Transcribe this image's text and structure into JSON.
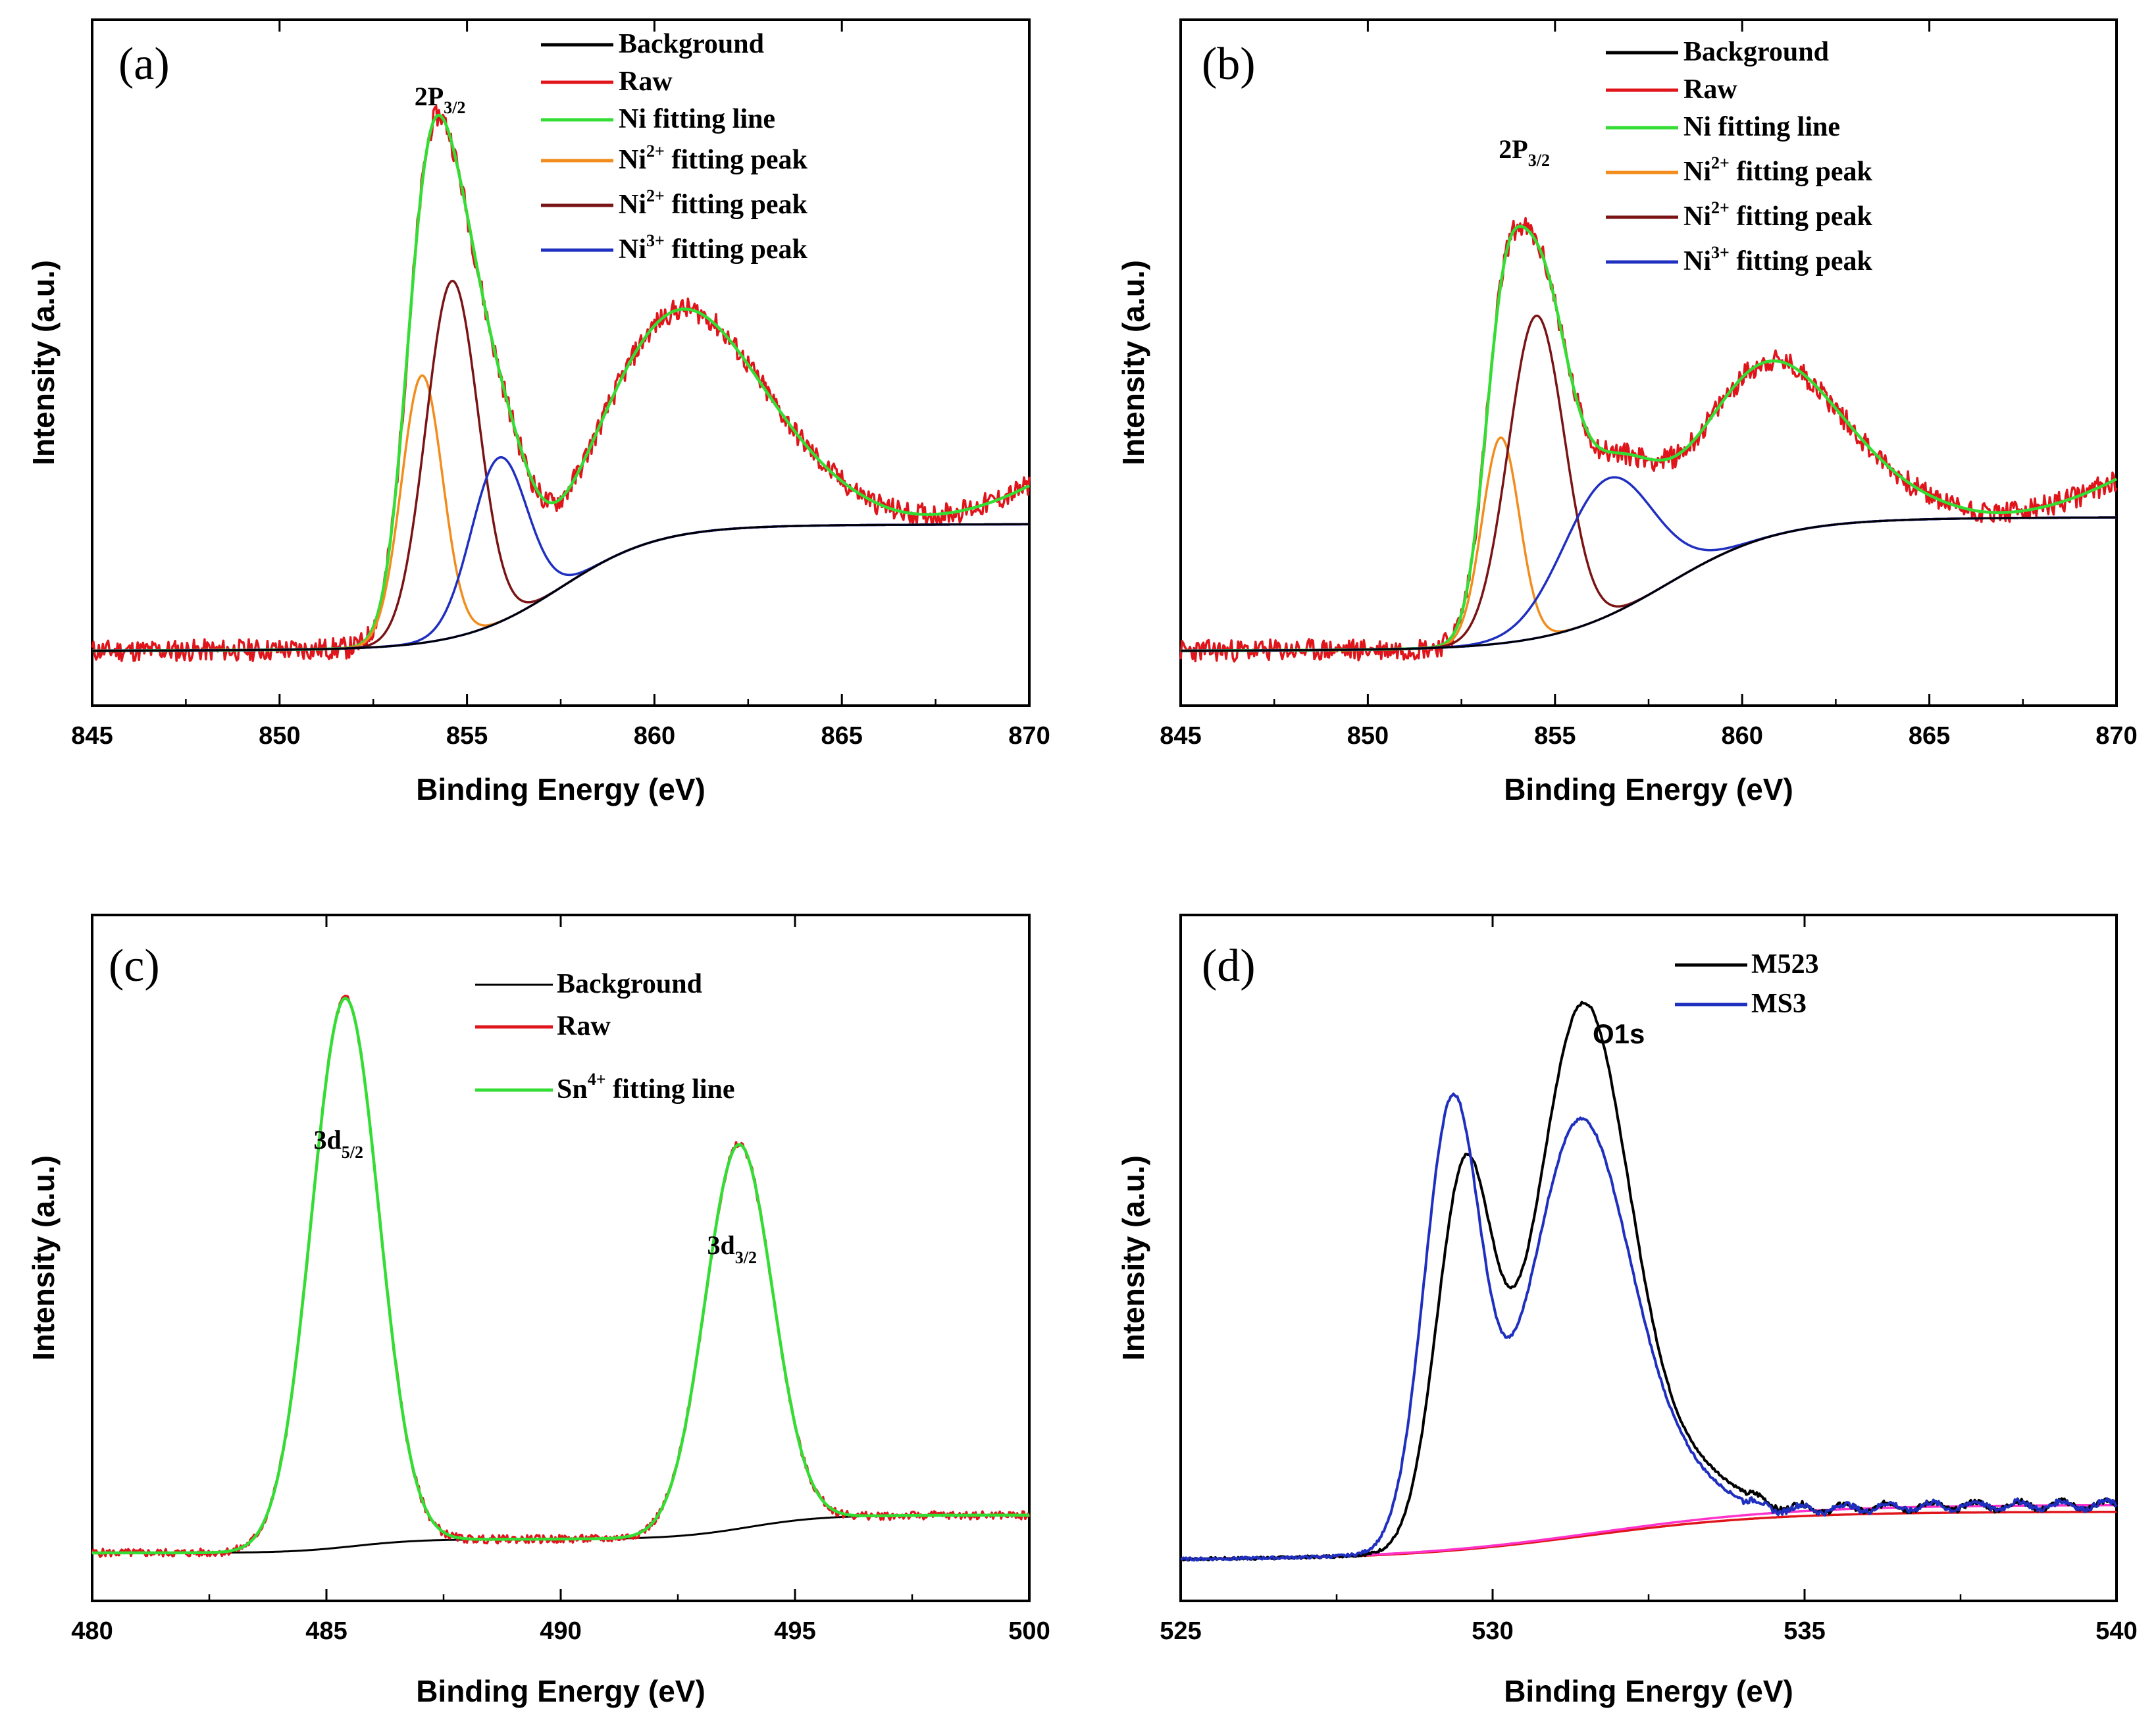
{
  "chart_data": [
    {
      "panel": "(a)",
      "type": "line",
      "xlabel": "Binding Energy (eV)",
      "ylabel": "Intensity (a.u.)",
      "xlim": [
        845,
        870
      ],
      "xticks": [
        845,
        850,
        855,
        860,
        865,
        870
      ],
      "ylim": [
        0,
        100
      ],
      "peak_annotation": {
        "base": "2P",
        "sub": "3/2",
        "x": 854.3,
        "y": 92
      },
      "legend": [
        {
          "label": "Background",
          "color": "#000000"
        },
        {
          "label": "Raw",
          "color": "#e0151b"
        },
        {
          "label": "Ni fitting line",
          "color": "#33dd33"
        },
        {
          "label": "Ni",
          "sup": "2+",
          "rest": " fitting peak",
          "color": "#f28c1c"
        },
        {
          "label": "Ni",
          "sup": "2+",
          "rest": " fitting peak",
          "color": "#7a1414"
        },
        {
          "label": "Ni",
          "sup": "3+",
          "rest": " fitting peak",
          "color": "#1f2fbf"
        }
      ],
      "background": {
        "start": 8,
        "end": 26,
        "center": 857.5,
        "width": 1.3
      },
      "peaks": [
        {
          "series": "Ni2+ peak 1",
          "center": 853.8,
          "height": 39,
          "sigma": 0.55,
          "color": "#f28c1c"
        },
        {
          "series": "Ni2+ peak 2",
          "center": 854.6,
          "height": 52,
          "sigma": 0.7,
          "color": "#7a1414"
        },
        {
          "series": "Ni3+ peak",
          "center": 855.85,
          "height": 24,
          "sigma": 0.75,
          "color": "#1f2fbf"
        },
        {
          "series": "satellite",
          "center": 860.3,
          "height": 27,
          "sigma": 2.0,
          "color": "none"
        },
        {
          "series": "satellite 2",
          "center": 862.5,
          "height": 9,
          "sigma": 2.2,
          "color": "none"
        }
      ],
      "noise": 0.9,
      "seed": 11
    },
    {
      "panel": "(b)",
      "type": "line",
      "xlabel": "Binding Energy (eV)",
      "ylabel": "Intensity (a.u.)",
      "xlim": [
        845,
        870
      ],
      "xticks": [
        845,
        850,
        855,
        860,
        865,
        870
      ],
      "ylim": [
        0,
        100
      ],
      "peak_annotation": {
        "base": "2P",
        "sub": "3/2",
        "x": 854.2,
        "y": 86
      },
      "legend": [
        {
          "label": "Background",
          "color": "#000000"
        },
        {
          "label": "Raw",
          "color": "#e0151b"
        },
        {
          "label": "Ni fitting line",
          "color": "#33dd33"
        },
        {
          "label": "Ni",
          "sup": "2+",
          "rest": " fitting peak",
          "color": "#f28c1c"
        },
        {
          "label": "Ni",
          "sup": "2+",
          "rest": " fitting peak",
          "color": "#7a1414"
        },
        {
          "label": "Ni",
          "sup": "3+",
          "rest": " fitting peak",
          "color": "#1f2fbf"
        }
      ],
      "background": {
        "start": 8,
        "end": 27,
        "center": 858.0,
        "width": 1.5
      },
      "peaks": [
        {
          "series": "Ni2+ peak 1",
          "center": 853.55,
          "height": 30,
          "sigma": 0.5,
          "color": "#f28c1c"
        },
        {
          "series": "Ni2+ peak 2",
          "center": 854.5,
          "height": 47,
          "sigma": 0.75,
          "color": "#7a1414"
        },
        {
          "series": "Ni3+ peak",
          "center": 856.4,
          "height": 20,
          "sigma": 1.2,
          "color": "#1f2fbf"
        },
        {
          "series": "satellite",
          "center": 860.3,
          "height": 21,
          "sigma": 1.8,
          "color": "none"
        },
        {
          "series": "satellite 2",
          "center": 862.3,
          "height": 7,
          "sigma": 2.0,
          "color": "none"
        }
      ],
      "noise": 0.9,
      "seed": 23
    },
    {
      "panel": "(c)",
      "type": "line",
      "xlabel": "Binding Energy (eV)",
      "ylabel": "Intensity (a.u.)",
      "xlim": [
        480,
        500
      ],
      "xticks": [
        480,
        485,
        490,
        495,
        500
      ],
      "ylim": [
        0,
        100
      ],
      "legend": [
        {
          "label": "Background",
          "color": "#000000"
        },
        {
          "label": "Raw",
          "color": "#e0151b"
        },
        {
          "label": "Sn",
          "sup": "4+",
          "rest": " fitting line",
          "color": "#33dd33"
        }
      ],
      "peak_labels": [
        {
          "base": "3d",
          "sub": "5/2",
          "x": 485.4,
          "y": 93
        },
        {
          "base": "3d",
          "sub": "3/2",
          "x": 493.8,
          "y": 70
        }
      ],
      "background": {
        "steps": [
          {
            "center": 485.6,
            "height": 2.0,
            "width": 0.7
          },
          {
            "center": 494.0,
            "height": 3.5,
            "width": 0.8
          }
        ],
        "start": 7
      },
      "peaks": [
        {
          "center": 485.4,
          "height": 80,
          "sigma": 0.72
        },
        {
          "center": 493.8,
          "height": 56,
          "sigma": 0.72
        }
      ],
      "noise": 0.6,
      "seed": 5
    },
    {
      "panel": "(d)",
      "type": "line",
      "xlabel": "Binding Energy (eV)",
      "ylabel": "Intensity (a.u.)",
      "xlim": [
        525,
        540
      ],
      "xticks": [
        525,
        530,
        535,
        540
      ],
      "ylim": [
        0,
        100
      ],
      "peak_label": "O1s",
      "series": [
        {
          "name": "M523",
          "color": "#000000",
          "baseline": 6,
          "rise": 8,
          "peaks": [
            {
              "center": 529.55,
              "height": 54,
              "sigma": 0.45
            },
            {
              "center": 531.45,
              "height": 77,
              "sigma": 0.75
            },
            {
              "center": 533.2,
              "height": 6,
              "sigma": 0.7
            }
          ]
        },
        {
          "name": "MS3",
          "color": "#1f2fbf",
          "baseline": 6,
          "rise": 8,
          "peaks": [
            {
              "center": 529.35,
              "height": 64,
              "sigma": 0.45
            },
            {
              "center": 531.4,
              "height": 60,
              "sigma": 0.8
            },
            {
              "center": 533.0,
              "height": 5,
              "sigma": 0.7
            }
          ]
        }
      ],
      "backgrounds": [
        {
          "color": "#e0151b",
          "start": 6,
          "end": 13,
          "center": 531.5,
          "width": 1.5
        },
        {
          "color": "#ff33cc",
          "start": 6,
          "end": 14,
          "center": 531.7,
          "width": 1.6
        }
      ]
    }
  ]
}
